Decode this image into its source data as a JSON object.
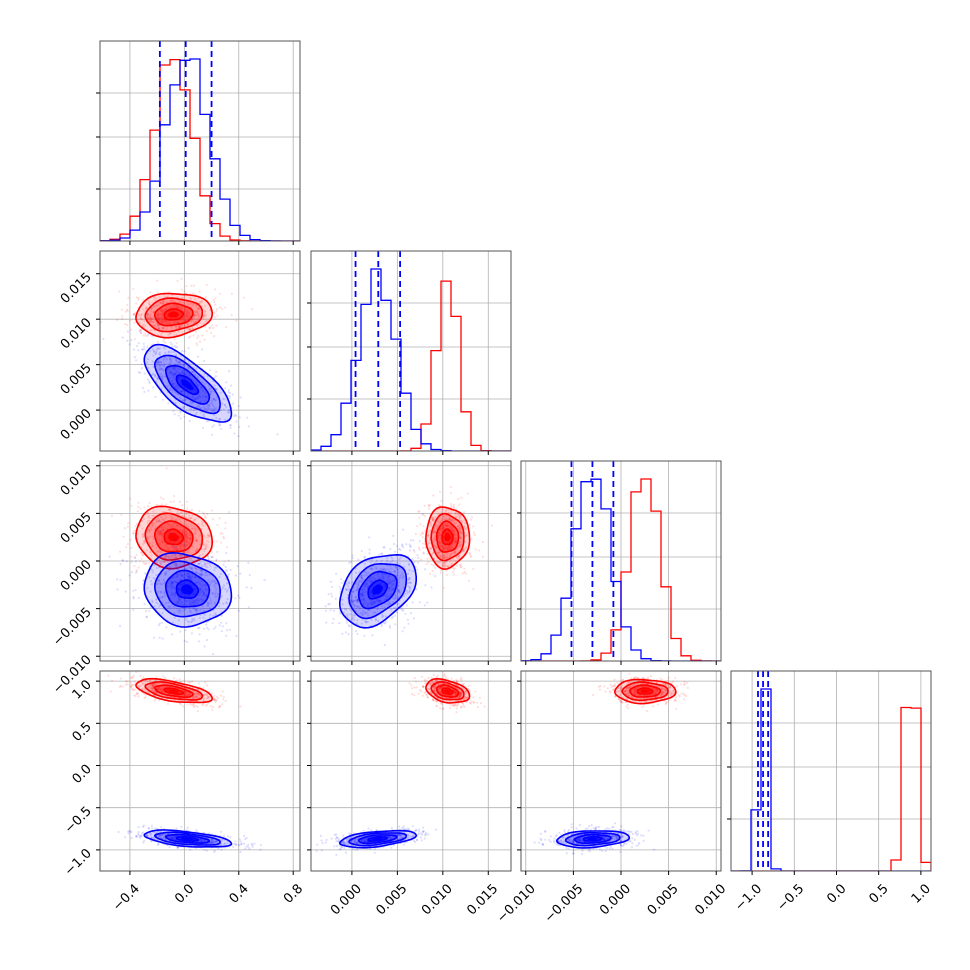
{
  "chart_data": {
    "type": "corner",
    "grid": true,
    "parameters": [
      {
        "ticks": [
          -0.4,
          0.0,
          0.4,
          0.8
        ],
        "tick_labels": [
          "−0.4",
          "0.0",
          "0.4",
          "0.8"
        ],
        "range": [
          -0.62,
          0.85
        ]
      },
      {
        "ticks": [
          0.0,
          0.005,
          0.01,
          0.015
        ],
        "tick_labels": [
          "0.000",
          "0.005",
          "0.010",
          "0.015"
        ],
        "range": [
          -0.0045,
          0.0175
        ]
      },
      {
        "ticks": [
          -0.01,
          -0.005,
          0.0,
          0.005,
          0.01
        ],
        "tick_labels": [
          "−0.010",
          "−0.005",
          "0.000",
          "0.005",
          "0.010"
        ],
        "range": [
          -0.0105,
          0.0105
        ]
      },
      {
        "ticks": [
          -1.0,
          -0.5,
          0.0,
          0.5,
          1.0
        ],
        "tick_labels": [
          "−1.0",
          "−0.5",
          "0.0",
          "0.5",
          "1.0"
        ],
        "range": [
          -1.25,
          1.12
        ]
      }
    ],
    "series": [
      {
        "color": "#ff0000",
        "means": [
          -0.08,
          0.0105,
          0.0025,
          0.88
        ],
        "stds": [
          0.14,
          0.0012,
          0.0016,
          0.07
        ],
        "correlations": [
          [
            0,
            1,
            0.1
          ],
          [
            0,
            2,
            -0.1
          ],
          [
            0,
            3,
            -0.55
          ],
          [
            1,
            2,
            0.0
          ],
          [
            1,
            3,
            -0.35
          ],
          [
            2,
            3,
            0.0
          ]
        ]
      },
      {
        "color": "#0000ff",
        "means": [
          0.02,
          0.0028,
          -0.003,
          -0.87
        ],
        "stds": [
          0.16,
          0.0021,
          0.0019,
          0.05
        ],
        "correlations": [
          [
            0,
            1,
            -0.7
          ],
          [
            0,
            2,
            -0.1
          ],
          [
            0,
            3,
            -0.5
          ],
          [
            1,
            2,
            0.35
          ],
          [
            1,
            3,
            0.45
          ],
          [
            2,
            3,
            0.2
          ]
        ]
      }
    ],
    "quantile_lines": {
      "color": "#0000ff",
      "style": "dashed",
      "values": [
        [
          -0.18,
          0.01,
          0.2
        ],
        [
          0.0004,
          0.0029,
          0.0053
        ],
        [
          -0.0052,
          -0.003,
          -0.0008
        ],
        [
          -0.93,
          -0.87,
          -0.81
        ]
      ]
    }
  }
}
